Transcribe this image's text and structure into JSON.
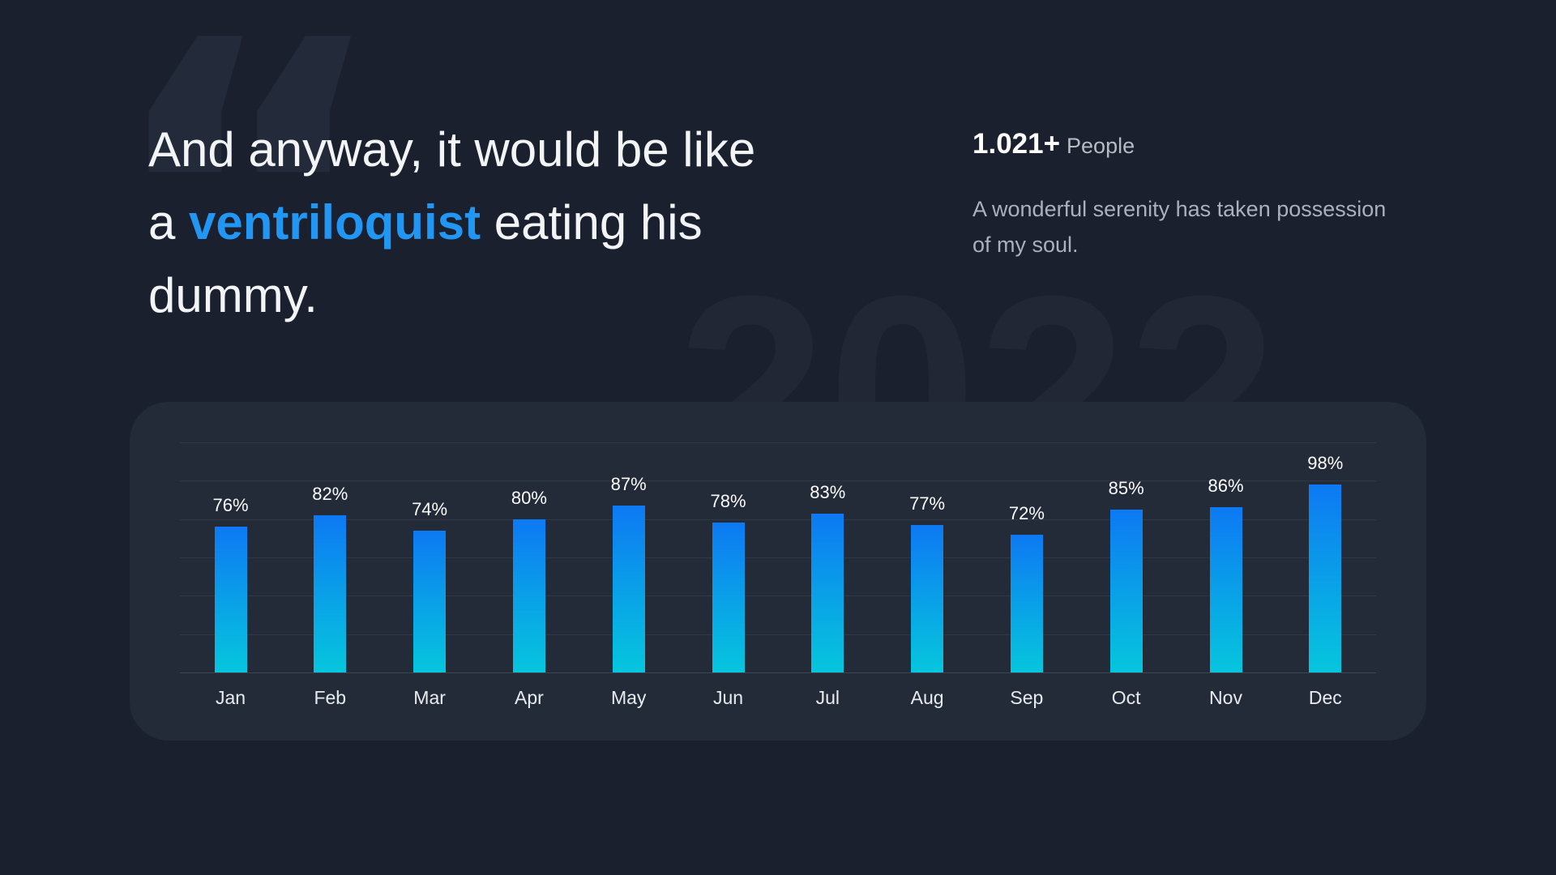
{
  "watermark": {
    "year": "2022",
    "quote_glyph": "“"
  },
  "quote": {
    "line1": "And anyway, it would be like",
    "line2_pre": "a ",
    "line2_highlight": "ventriloquist",
    "line2_post": " eating his",
    "line3": "dummy.",
    "full_text": "And anyway, it would be like a ventriloquist eating his dummy.",
    "highlight_color": "#2196f3"
  },
  "stats": {
    "count": "1.021+",
    "count_label": "People",
    "description": "A wonderful serenity has taken possession of my soul."
  },
  "chart_data": {
    "type": "bar",
    "categories": [
      "Jan",
      "Feb",
      "Mar",
      "Apr",
      "May",
      "Jun",
      "Jul",
      "Aug",
      "Sep",
      "Oct",
      "Nov",
      "Dec"
    ],
    "values": [
      76,
      82,
      74,
      80,
      87,
      78,
      83,
      77,
      72,
      85,
      86,
      98
    ],
    "unit": "%",
    "title": "",
    "xlabel": "",
    "ylabel": "",
    "ylim": [
      0,
      120
    ],
    "gridline_count": 7,
    "gridline_step_pct": 20,
    "grid": true,
    "legend": false,
    "data_labels": true,
    "bar_color_top": "#0d79f3",
    "bar_color_bottom": "#06c6dd"
  },
  "colors": {
    "background": "#1a202d",
    "card": "#242b38",
    "accent_blue": "#2196f3",
    "text_primary": "#f2f4f6",
    "text_secondary": "#abb1bb",
    "watermark": "#212734"
  }
}
